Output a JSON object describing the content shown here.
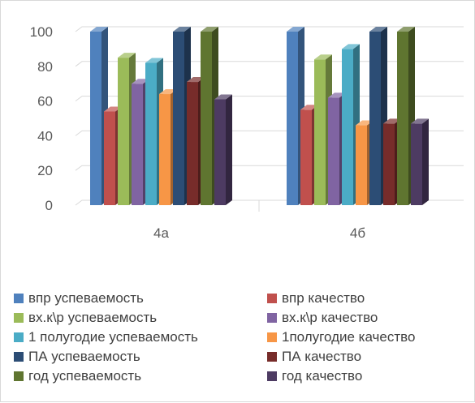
{
  "chart_data": {
    "type": "bar",
    "style": "3d-clustered-column",
    "categories": [
      "4а",
      "4б"
    ],
    "ylim": [
      0,
      100
    ],
    "yticks": [
      0,
      20,
      40,
      60,
      80,
      100
    ],
    "grid": true,
    "legend_position": "bottom",
    "series": [
      {
        "name": "впр успеваемость",
        "color": "#4f81bd",
        "values": [
          100,
          100
        ]
      },
      {
        "name": "впр качество",
        "color": "#c0504d",
        "values": [
          54,
          55
        ]
      },
      {
        "name": "вх.к\\р успеваемость",
        "color": "#9bbb59",
        "values": [
          85,
          84
        ]
      },
      {
        "name": "вх.к\\р качество",
        "color": "#8064a2",
        "values": [
          70,
          62
        ]
      },
      {
        "name": "1 полугодие успеваемость",
        "color": "#4bacc6",
        "values": [
          82,
          90
        ]
      },
      {
        "name": "1полугодие качество",
        "color": "#f79646",
        "values": [
          64,
          46
        ]
      },
      {
        "name": "ПА успеваемость",
        "color": "#2c4d75",
        "values": [
          100,
          100
        ]
      },
      {
        "name": "ПА качество",
        "color": "#772c2a",
        "values": [
          71,
          47
        ]
      },
      {
        "name": "год успеваемость",
        "color": "#5f7530",
        "values": [
          100,
          100
        ]
      },
      {
        "name": "год качество",
        "color": "#4d3b62",
        "values": [
          61,
          47
        ]
      }
    ]
  }
}
